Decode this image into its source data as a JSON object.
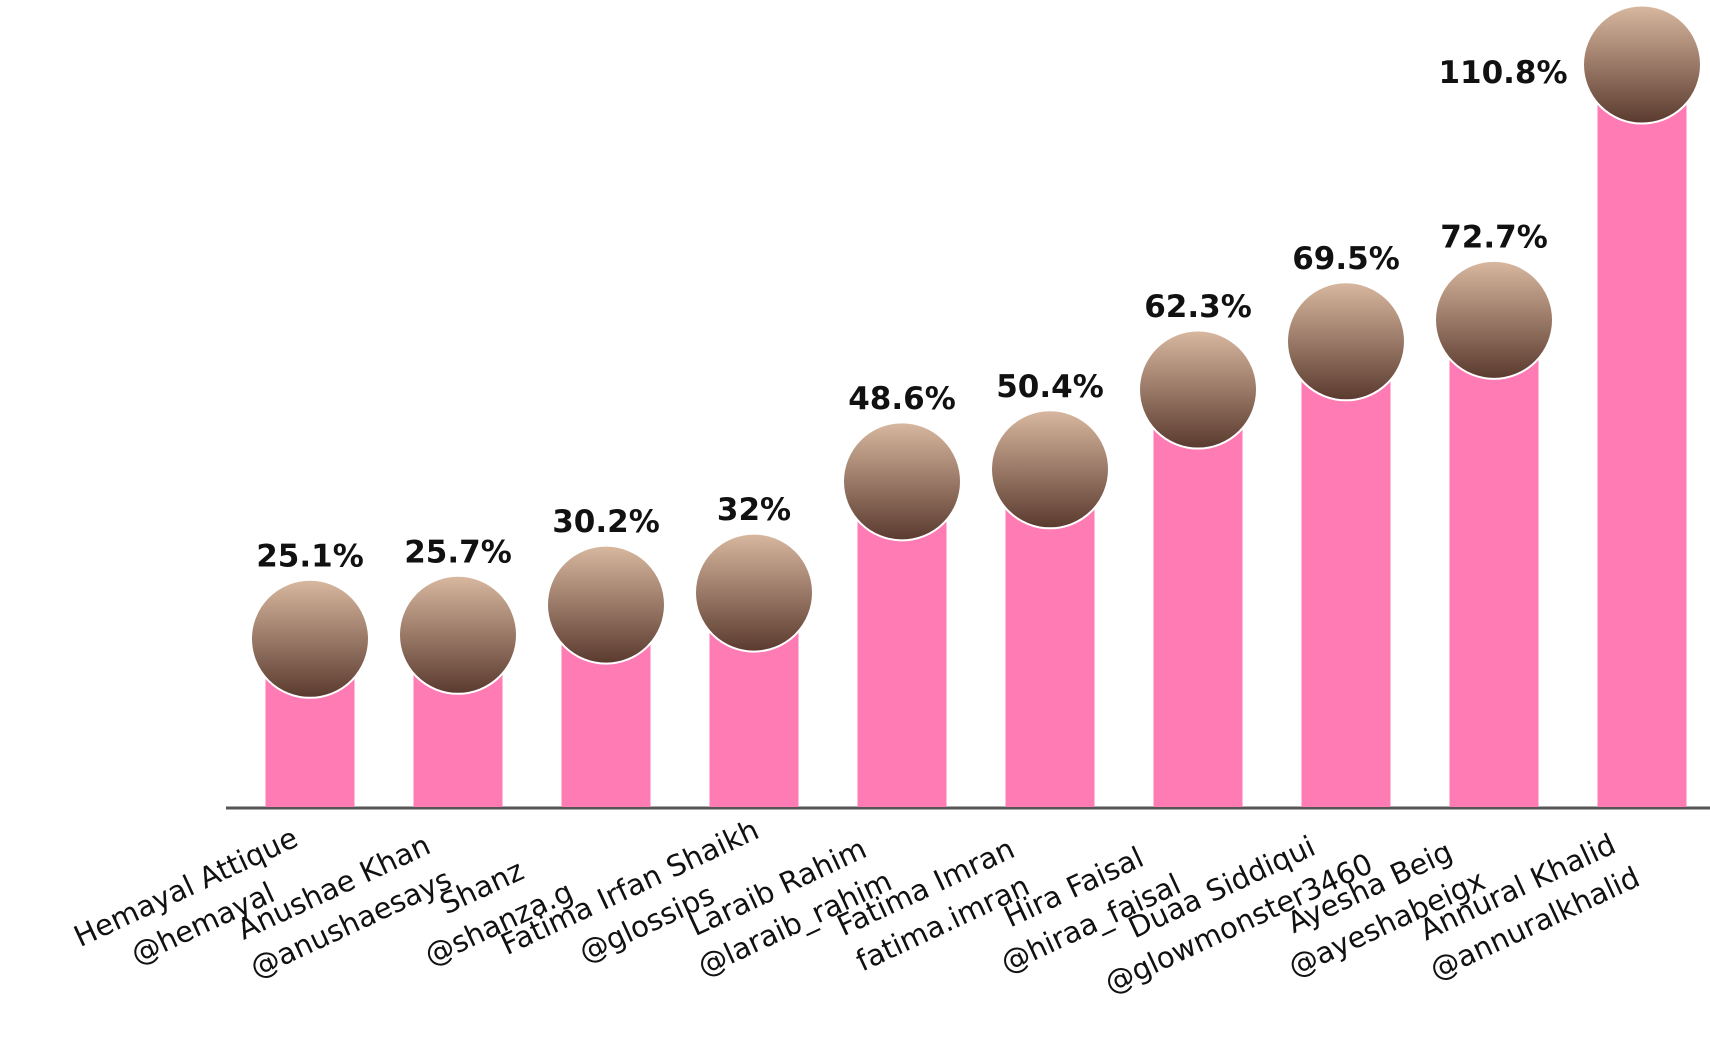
{
  "chart_data": {
    "type": "bar",
    "categories": [
      "Hemayal Attique",
      "Anushae Khan",
      "Shanz",
      "Fatima Irfan Shaikh",
      "Laraib Rahim",
      "Fatima Imran",
      "Hira Faisal",
      "Duaa Siddiqui",
      "Ayesha Beig",
      "Annural Khalid"
    ],
    "handles": [
      "@hemayal",
      "@anushaesays",
      "@shanza.g",
      "@glossips",
      "@laraib_rahim",
      "fatima.imran",
      "@hiraa_faisal",
      "@glowmonster3460",
      "@ayeshabeigx",
      "@annuralkhalid"
    ],
    "values": [
      25.1,
      25.7,
      30.2,
      32,
      48.6,
      50.4,
      62.3,
      69.5,
      72.7,
      110.8
    ],
    "value_labels": [
      "25.1%",
      "25.7%",
      "30.2%",
      "32%",
      "48.6%",
      "50.4%",
      "62.3%",
      "69.5%",
      "72.7%",
      "110.8%"
    ],
    "color": "#ff7bb4",
    "ylim": [
      0,
      117
    ]
  }
}
